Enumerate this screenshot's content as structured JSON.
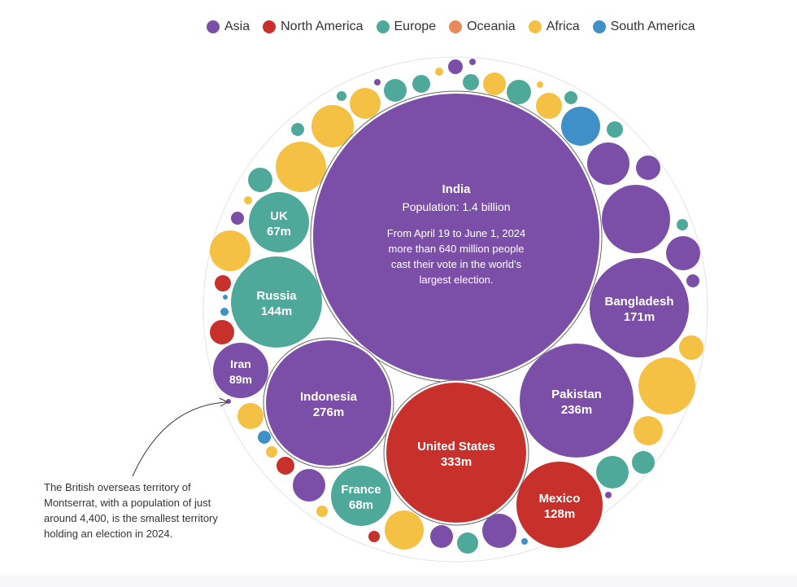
{
  "legend": [
    {
      "label": "Asia",
      "color": "#7b4ea8"
    },
    {
      "label": "North America",
      "color": "#c7302b"
    },
    {
      "label": "Europe",
      "color": "#4fa99a"
    },
    {
      "label": "Oceania",
      "color": "#e98a5b"
    },
    {
      "label": "Africa",
      "color": "#f5c144"
    },
    {
      "label": "South America",
      "color": "#3f8fc8"
    }
  ],
  "annotation": "The British overseas territory of Montserrat, with a population of just around 4,400, is the smallest territory holding an election in 2024.",
  "chart_data": {
    "type": "bubble",
    "labeled_bubbles": [
      {
        "name": "India",
        "region": "Asia",
        "value_label": "Population: 1.4 billion",
        "note": [
          "From April 19 to June 1, 2024",
          "more than 640 million people",
          "cast their vote in the world’s",
          "largest election."
        ]
      },
      {
        "name": "United States",
        "region": "North America",
        "value_label": "333m"
      },
      {
        "name": "Indonesia",
        "region": "Asia",
        "value_label": "276m"
      },
      {
        "name": "Pakistan",
        "region": "Asia",
        "value_label": "236m"
      },
      {
        "name": "Bangladesh",
        "region": "Asia",
        "value_label": "171m"
      },
      {
        "name": "Russia",
        "region": "Europe",
        "value_label": "144m"
      },
      {
        "name": "Mexico",
        "region": "North America",
        "value_label": "128m"
      },
      {
        "name": "Iran",
        "region": "Asia",
        "value_label": "89m"
      },
      {
        "name": "France",
        "region": "Europe",
        "value_label": "68m"
      },
      {
        "name": "UK",
        "region": "Europe",
        "value_label": "67m"
      }
    ]
  }
}
